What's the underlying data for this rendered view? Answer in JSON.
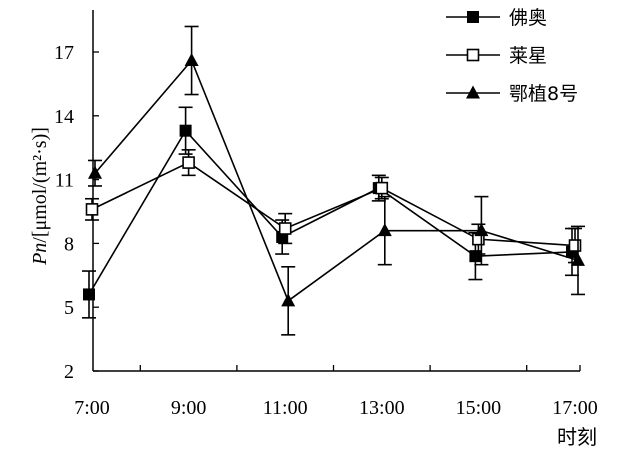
{
  "chart_data": {
    "type": "line",
    "title": "",
    "xlabel": "时刻",
    "ylabel": {
      "symbol": "Pn",
      "unit": "/[μmol/(m²·s)]"
    },
    "ylim": [
      2,
      17
    ],
    "yticks": [
      "2",
      "5",
      "8",
      "11",
      "14",
      "17"
    ],
    "categories": [
      "7:00",
      "9:00",
      "11:00",
      "13:00",
      "15:00",
      "17:00"
    ],
    "legend_position": "top-right",
    "grid": false,
    "series": [
      {
        "name": "佛奥",
        "marker": "filled-square",
        "values": [
          5.6,
          13.3,
          8.3,
          10.6,
          7.4,
          7.6
        ],
        "errors": [
          1.1,
          1.1,
          0.8,
          0.6,
          1.1,
          1.1
        ]
      },
      {
        "name": "莱星",
        "marker": "open-square",
        "values": [
          9.6,
          11.8,
          8.7,
          10.6,
          8.2,
          7.9
        ],
        "errors": [
          0.5,
          0.6,
          0.7,
          0.5,
          0.7,
          0.8
        ]
      },
      {
        "name": "鄂植8号",
        "marker": "filled-triangle",
        "values": [
          11.3,
          16.6,
          5.3,
          8.6,
          8.6,
          7.2
        ],
        "errors": [
          0.6,
          1.6,
          1.6,
          1.6,
          1.6,
          1.6
        ]
      }
    ]
  }
}
